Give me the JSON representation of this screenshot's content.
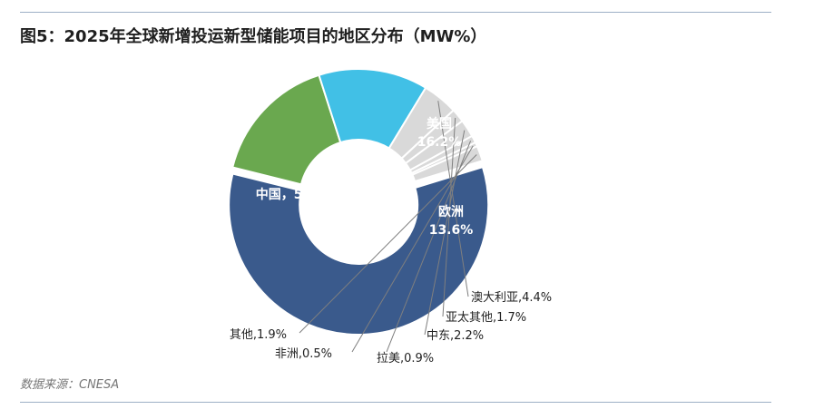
{
  "figure": {
    "title": "图5：2025年全球新增投运新型储能项目的地区分布（MW%）",
    "source": "数据来源：CNESA"
  },
  "chart_data": {
    "type": "pie",
    "donut": true,
    "slices": [
      {
        "label": "中国，58.6%",
        "name": "中国",
        "value": 58.6,
        "color": "#3a5a8c",
        "label_color": "#ffffff"
      },
      {
        "label": "美国\n16.2%",
        "name": "美国",
        "value": 16.2,
        "color": "#6aa84f",
        "label_color": "#ffffff"
      },
      {
        "label": "欧洲\n13.6%",
        "name": "欧洲",
        "value": 13.6,
        "color": "#41c0e6",
        "label_color": "#ffffff"
      },
      {
        "label": "澳大利亚,4.4%",
        "name": "澳大利亚",
        "value": 4.4,
        "color": "#d9d9d9",
        "label_color": "#1f1f1f"
      },
      {
        "label": "亚太其他,1.7%",
        "name": "亚太其他",
        "value": 1.7,
        "color": "#d9d9d9",
        "label_color": "#1f1f1f"
      },
      {
        "label": "中东,2.2%",
        "name": "中东",
        "value": 2.2,
        "color": "#d9d9d9",
        "label_color": "#1f1f1f"
      },
      {
        "label": "拉美,0.9%",
        "name": "拉美",
        "value": 0.9,
        "color": "#d9d9d9",
        "label_color": "#1f1f1f"
      },
      {
        "label": "非洲,0.5%",
        "name": "非洲",
        "value": 0.5,
        "color": "#d9d9d9",
        "label_color": "#1f1f1f"
      },
      {
        "label": "其他,1.9%",
        "name": "其他",
        "value": 1.9,
        "color": "#d9d9d9",
        "label_color": "#1f1f1f"
      }
    ]
  }
}
